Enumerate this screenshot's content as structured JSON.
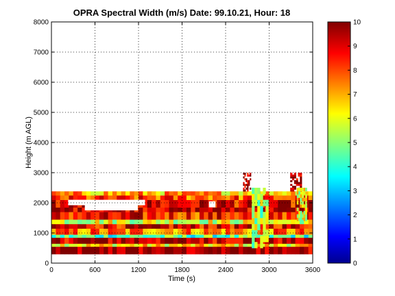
{
  "chart_data": {
    "type": "heatmap",
    "title": "OPRA Spectral Width (m/s)  Date: 99.10.21, Hour: 18",
    "xlabel": "Time (s)",
    "ylabel": "Height (m AGL)",
    "xlim": [
      0,
      3600
    ],
    "ylim": [
      0,
      8000
    ],
    "x_ticks": [
      "0",
      "600",
      "1200",
      "1800",
      "2400",
      "3000",
      "3600"
    ],
    "y_ticks": [
      "0",
      "1000",
      "2000",
      "3000",
      "4000",
      "5000",
      "6000",
      "7000",
      "8000"
    ],
    "grid": true,
    "colorbar": {
      "range": [
        0,
        10
      ],
      "ticks": [
        "0",
        "1",
        "2",
        "3",
        "4",
        "5",
        "6",
        "7",
        "8",
        "9",
        "10"
      ],
      "colormap": "jet"
    },
    "layers": [
      {
        "height_from": 300,
        "height_to": 550,
        "value": 9.8
      },
      {
        "height_from": 550,
        "height_to": 650,
        "value": 6.5
      },
      {
        "height_from": 650,
        "height_to": 850,
        "value": 9.5
      },
      {
        "height_from": 850,
        "height_to": 950,
        "value": 4.5
      },
      {
        "height_from": 950,
        "height_to": 1150,
        "value": 7.5
      },
      {
        "height_from": 1150,
        "height_to": 1300,
        "value": 9.0
      },
      {
        "height_from": 1300,
        "height_to": 1450,
        "value": 6.0
      },
      {
        "height_from": 1450,
        "height_to": 1700,
        "value": 8.5
      },
      {
        "height_from": 1700,
        "height_to": 1850,
        "value": 9.5
      },
      {
        "height_from": 1850,
        "height_to": 2100,
        "value": 9.0
      },
      {
        "height_from": 2100,
        "height_to": 2250,
        "value": 8.0
      },
      {
        "height_from": 2250,
        "height_to": 2380,
        "value": 7.0
      }
    ],
    "gaps": [
      {
        "x_from": 230,
        "x_to": 1290,
        "height_from": 1920,
        "height_to": 2100
      },
      {
        "x_from": 460,
        "x_to": 1190,
        "height_from": 1750,
        "height_to": 1920
      },
      {
        "x_from": 2170,
        "x_to": 2260,
        "height_from": 1850,
        "height_to": 2050
      }
    ],
    "features": [
      {
        "x_from": 2640,
        "x_to": 2750,
        "height_from": 2380,
        "height_to": 3000,
        "value": 9.7
      },
      {
        "x_from": 3290,
        "x_to": 3450,
        "height_from": 2380,
        "height_to": 3000,
        "value": 9.7
      },
      {
        "x_from": 2760,
        "x_to": 2990,
        "height_from": 500,
        "height_to": 2500,
        "value": 5.5
      },
      {
        "x_from": 3380,
        "x_to": 3520,
        "height_from": 1400,
        "height_to": 2500,
        "value": 6.0
      }
    ]
  }
}
